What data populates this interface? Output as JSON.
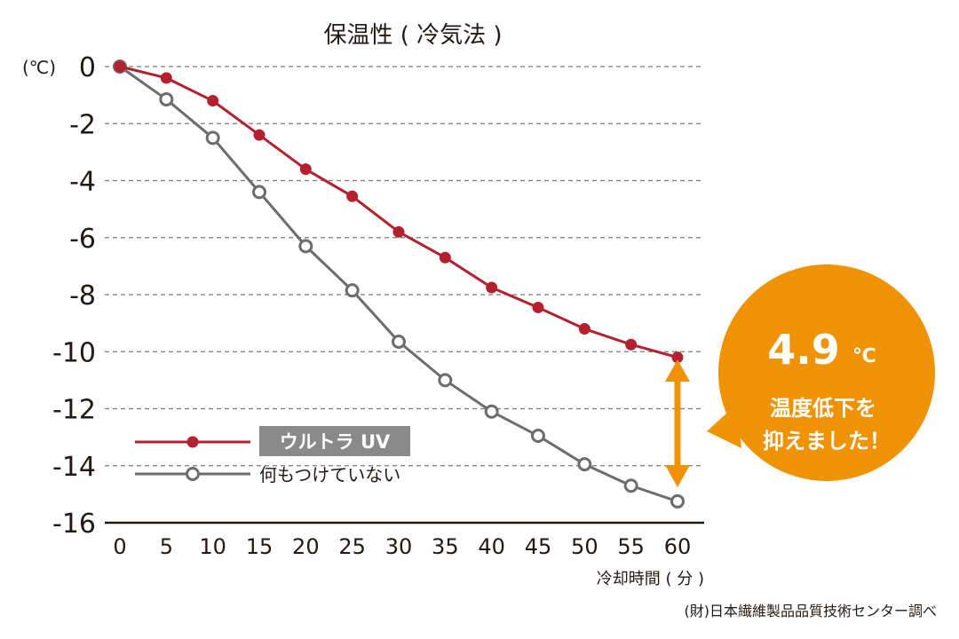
{
  "chart_data": {
    "type": "line",
    "title": "保温性 ( 冷気法 )",
    "y_unit": "(℃)",
    "xlabel": "冷却時間 ( 分 )",
    "source": "(財)日本繊維製品品質技術センター調べ",
    "x": [
      0,
      5,
      10,
      15,
      20,
      25,
      30,
      35,
      40,
      45,
      50,
      55,
      60
    ],
    "x_tick_labels": [
      "0",
      "5",
      "10",
      "15",
      "20",
      "25",
      "30",
      "35",
      "40",
      "45",
      "50",
      "55",
      "60"
    ],
    "y_ticks": [
      0,
      -2,
      -4,
      -6,
      -8,
      -10,
      -12,
      -14,
      -16
    ],
    "y_tick_labels": [
      "0",
      "-2",
      "-4",
      "-6",
      "-8",
      "-10",
      "-12",
      "-14",
      "-16"
    ],
    "xlim": [
      0,
      60
    ],
    "ylim": [
      -16,
      0
    ],
    "grid": true,
    "series": [
      {
        "name": "ウルトラ UV",
        "color": "#b5202e",
        "marker": "filled-circle",
        "values": [
          0,
          -0.4,
          -1.2,
          -2.4,
          -3.6,
          -4.55,
          -5.8,
          -6.7,
          -7.75,
          -8.45,
          -9.2,
          -9.75,
          -10.2
        ]
      },
      {
        "name": "何もつけていない",
        "color": "#6d6d6d",
        "marker": "open-circle",
        "values": [
          0,
          -1.15,
          -2.5,
          -4.4,
          -6.3,
          -7.85,
          -9.65,
          -11.0,
          -12.1,
          -12.95,
          -13.95,
          -14.7,
          -15.25
        ]
      }
    ],
    "annotation": {
      "value": "4.9",
      "unit": "℃",
      "line1": "温度低下を",
      "line2": "抑えました！",
      "color": "#ef9304"
    }
  }
}
